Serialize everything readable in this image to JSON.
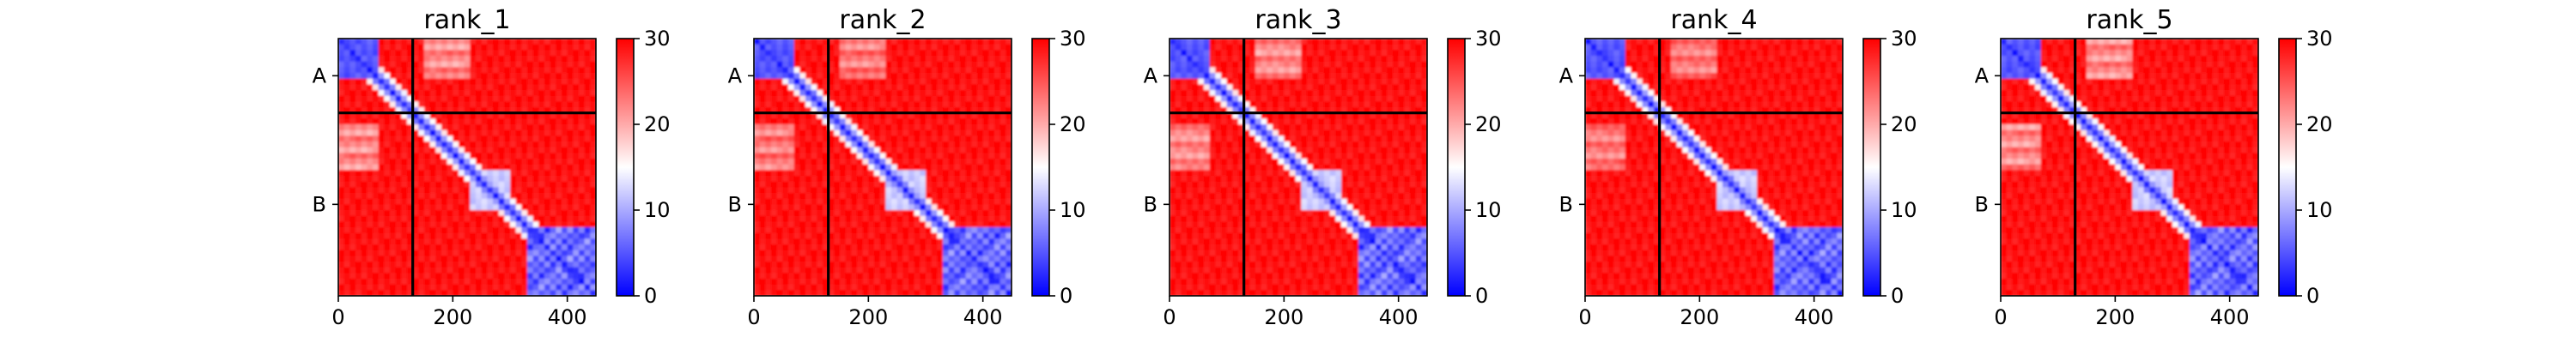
{
  "chart_data": [
    {
      "type": "heatmap",
      "title": "rank_1",
      "x_ticks": [
        0,
        200,
        400
      ],
      "y_tick_labels": [
        "A",
        "B"
      ],
      "chains": [
        {
          "name": "A",
          "start": 0,
          "end": 130
        },
        {
          "name": "B",
          "start": 130,
          "end": 450
        }
      ],
      "xlim": [
        0,
        450
      ],
      "colorbar": {
        "min": 0,
        "max": 30,
        "ticks": [
          0,
          10,
          20,
          30
        ],
        "colors": [
          "#0000ff",
          "#ffffff",
          "#ff0000"
        ]
      },
      "matrix_description": "predicted aligned error 450x450; low (blue) along diagonal, within chain A N-term block and residues ~330-450; high (red) elsewhere"
    },
    {
      "type": "heatmap",
      "title": "rank_2",
      "x_ticks": [
        0,
        200,
        400
      ],
      "y_tick_labels": [
        "A",
        "B"
      ],
      "chains": [
        {
          "name": "A",
          "start": 0,
          "end": 130
        },
        {
          "name": "B",
          "start": 130,
          "end": 450
        }
      ],
      "xlim": [
        0,
        450
      ],
      "colorbar": {
        "min": 0,
        "max": 30,
        "ticks": [
          0,
          10,
          20,
          30
        ],
        "colors": [
          "#0000ff",
          "#ffffff",
          "#ff0000"
        ]
      }
    },
    {
      "type": "heatmap",
      "title": "rank_3",
      "x_ticks": [
        0,
        200,
        400
      ],
      "y_tick_labels": [
        "A",
        "B"
      ],
      "chains": [
        {
          "name": "A",
          "start": 0,
          "end": 130
        },
        {
          "name": "B",
          "start": 130,
          "end": 450
        }
      ],
      "xlim": [
        0,
        450
      ],
      "colorbar": {
        "min": 0,
        "max": 30,
        "ticks": [
          0,
          10,
          20,
          30
        ],
        "colors": [
          "#0000ff",
          "#ffffff",
          "#ff0000"
        ]
      }
    },
    {
      "type": "heatmap",
      "title": "rank_4",
      "x_ticks": [
        0,
        200,
        400
      ],
      "y_tick_labels": [
        "A",
        "B"
      ],
      "chains": [
        {
          "name": "A",
          "start": 0,
          "end": 130
        },
        {
          "name": "B",
          "start": 130,
          "end": 450
        }
      ],
      "xlim": [
        0,
        450
      ],
      "colorbar": {
        "min": 0,
        "max": 30,
        "ticks": [
          0,
          10,
          20,
          30
        ],
        "colors": [
          "#0000ff",
          "#ffffff",
          "#ff0000"
        ]
      }
    },
    {
      "type": "heatmap",
      "title": "rank_5",
      "x_ticks": [
        0,
        200,
        400
      ],
      "y_tick_labels": [
        "A",
        "B"
      ],
      "chains": [
        {
          "name": "A",
          "start": 0,
          "end": 130
        },
        {
          "name": "B",
          "start": 130,
          "end": 450
        }
      ],
      "xlim": [
        0,
        450
      ],
      "colorbar": {
        "min": 0,
        "max": 30,
        "ticks": [
          0,
          10,
          20,
          30
        ],
        "colors": [
          "#0000ff",
          "#ffffff",
          "#ff0000"
        ]
      }
    }
  ]
}
